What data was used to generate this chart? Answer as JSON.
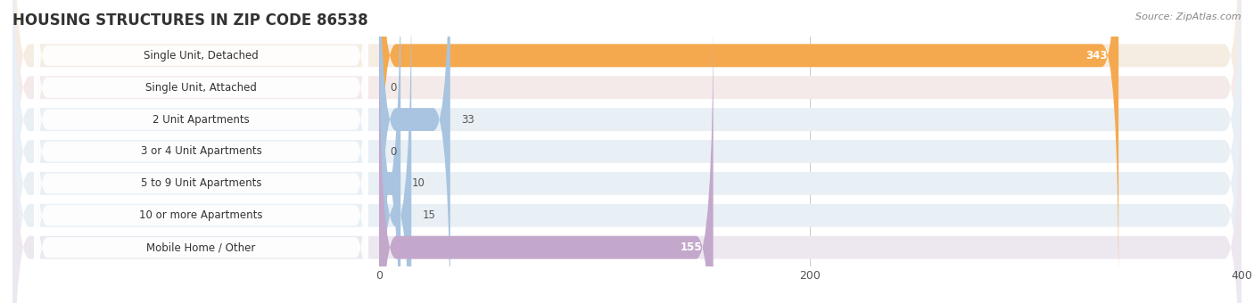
{
  "title": "HOUSING STRUCTURES IN ZIP CODE 86538",
  "source": "Source: ZipAtlas.com",
  "categories": [
    "Single Unit, Detached",
    "Single Unit, Attached",
    "2 Unit Apartments",
    "3 or 4 Unit Apartments",
    "5 to 9 Unit Apartments",
    "10 or more Apartments",
    "Mobile Home / Other"
  ],
  "values": [
    343,
    0,
    33,
    0,
    10,
    15,
    155
  ],
  "bar_colors": [
    "#F5A94E",
    "#F4A0A0",
    "#A8C4E0",
    "#A8C4E0",
    "#A8C4E0",
    "#A8C4E0",
    "#C4A8CC"
  ],
  "bg_colors": [
    "#F5EDE2",
    "#F5EAEA",
    "#E8EFF5",
    "#E8EFF5",
    "#E8EFF5",
    "#E8EFF5",
    "#EDE8F0"
  ],
  "xlim_left": -170,
  "xlim_right": 400,
  "xticks": [
    0,
    200,
    400
  ],
  "background_color": "#FFFFFF",
  "row_bg_color": "#EFEFEF",
  "title_fontsize": 12,
  "label_fontsize": 8.5,
  "value_fontsize": 8.5,
  "source_fontsize": 8
}
